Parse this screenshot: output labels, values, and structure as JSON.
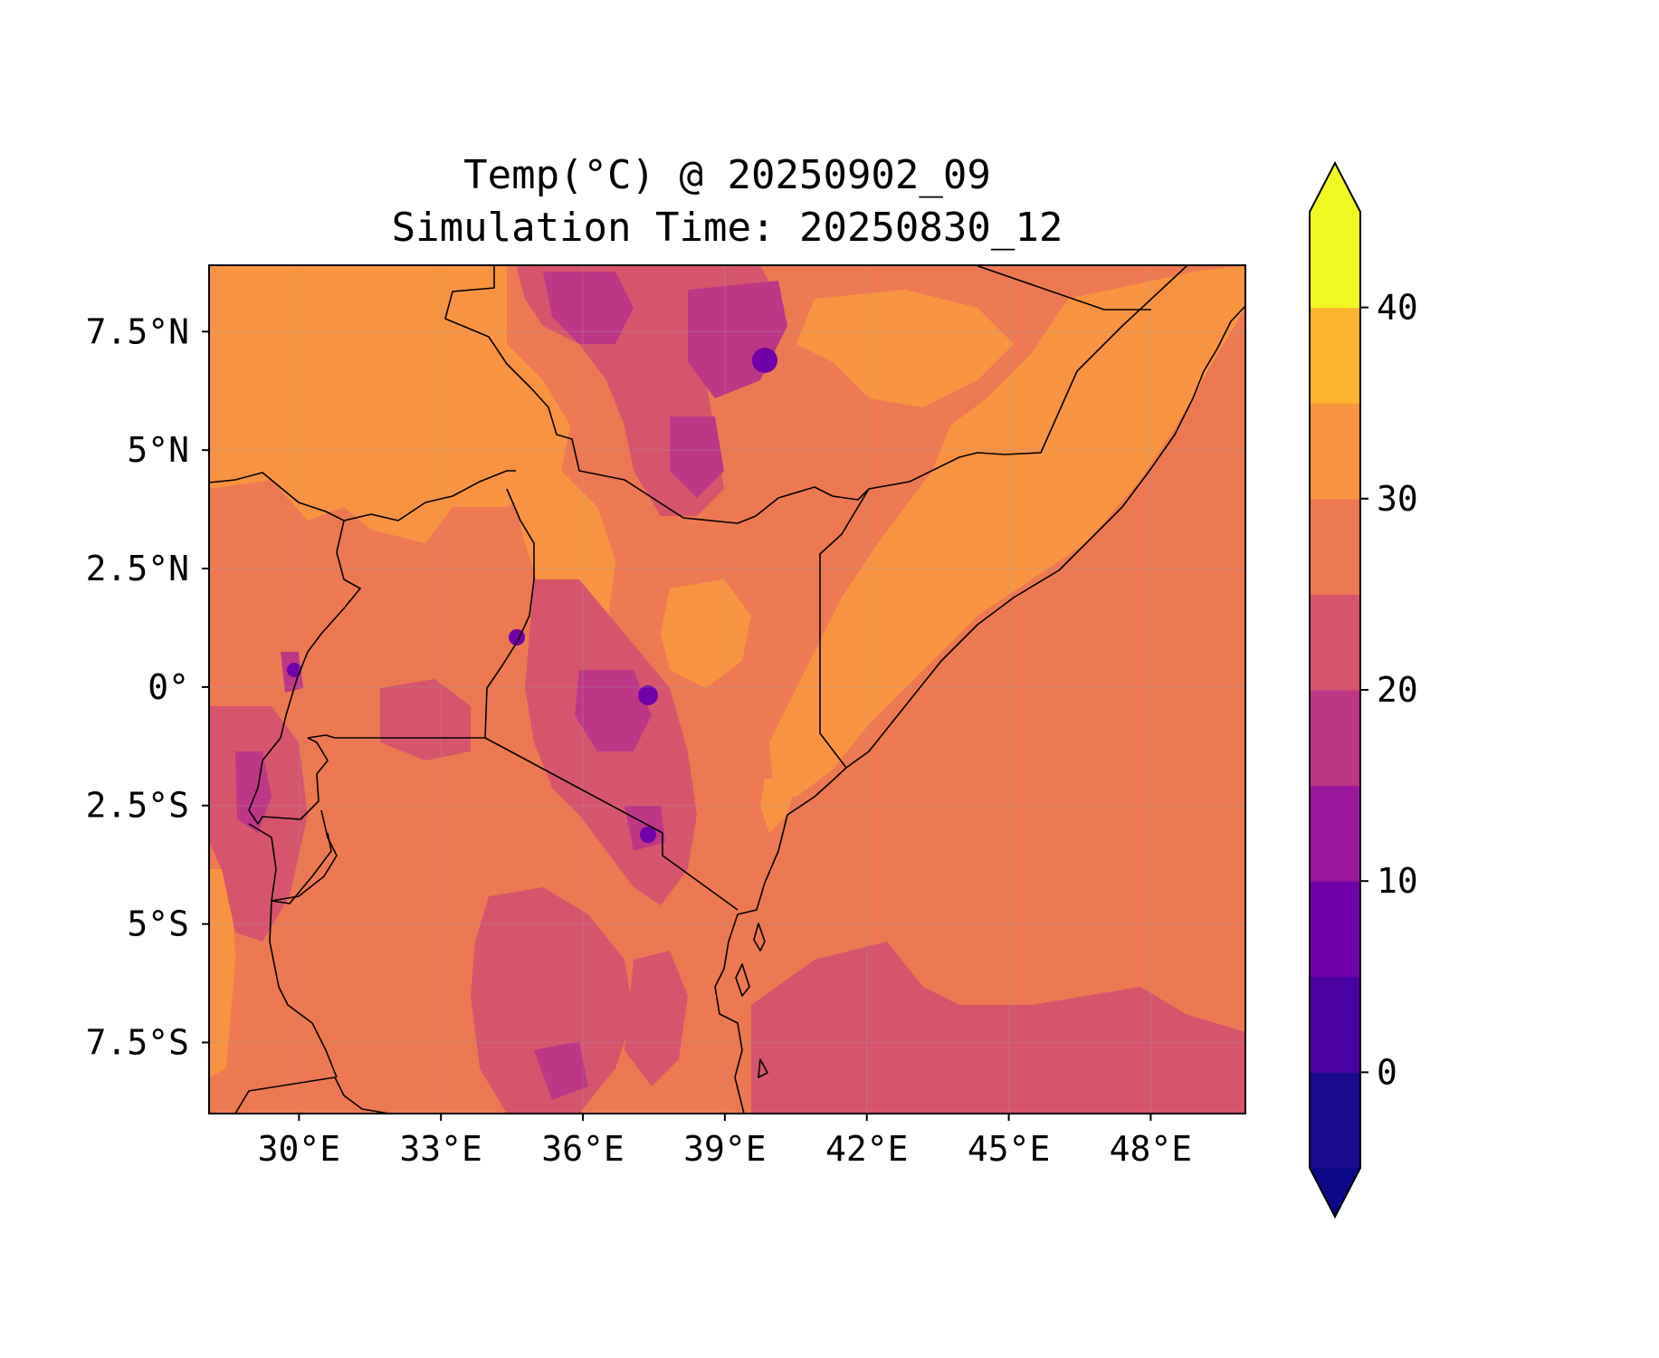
{
  "title": {
    "line1": "Temp(°C) @ 20250902_09",
    "line2": "Simulation Time: 20250830_12"
  },
  "map": {
    "region": "East Africa",
    "projection": "PlateCarree",
    "lon_range": [
      28.1,
      50.0
    ],
    "lat_range": [
      -9.0,
      8.9
    ],
    "x_ticks": [
      {
        "value": 30,
        "label": "30°E"
      },
      {
        "value": 33,
        "label": "33°E"
      },
      {
        "value": 36,
        "label": "36°E"
      },
      {
        "value": 39,
        "label": "39°E"
      },
      {
        "value": 42,
        "label": "42°E"
      },
      {
        "value": 45,
        "label": "45°E"
      },
      {
        "value": 48,
        "label": "48°E"
      }
    ],
    "y_ticks": [
      {
        "value": 7.5,
        "label": "7.5°N"
      },
      {
        "value": 5,
        "label": "5°N"
      },
      {
        "value": 2.5,
        "label": "2.5°N"
      },
      {
        "value": 0,
        "label": "0°"
      },
      {
        "value": -2.5,
        "label": "2.5°S"
      },
      {
        "value": -5,
        "label": "5°S"
      },
      {
        "value": -7.5,
        "label": "7.5°S"
      }
    ],
    "grid": true,
    "field": "2 m air temperature (°C), filled contours"
  },
  "colorbar": {
    "orientation": "vertical",
    "extend": "both",
    "colormap": "plasma",
    "levels": [
      -5,
      0,
      5,
      10,
      15,
      20,
      25,
      30,
      35,
      40,
      45
    ],
    "colors": [
      "#1a0a8c",
      "#4a03a0",
      "#7000a8",
      "#9a179b",
      "#bd3786",
      "#d6556d",
      "#ed7953",
      "#f89441",
      "#fdb42f",
      "#f0f921"
    ],
    "under_color": "#0d0887",
    "over_color": "#f0f921",
    "ticks": [
      {
        "value": 0,
        "label": "0"
      },
      {
        "value": 10,
        "label": "10"
      },
      {
        "value": 20,
        "label": "20"
      },
      {
        "value": 30,
        "label": "30"
      },
      {
        "value": 40,
        "label": "40"
      }
    ]
  },
  "palette": {
    "cool_10_15": "#9a179b",
    "cold_5_10": "#7000a8",
    "mild_15_20": "#bd3786",
    "mild_20_25": "#d6556d",
    "warm_25_30": "#ed7953",
    "hot_30_35": "#f89441",
    "border_color": "#000000",
    "grid_color": "#9a9aa0"
  }
}
